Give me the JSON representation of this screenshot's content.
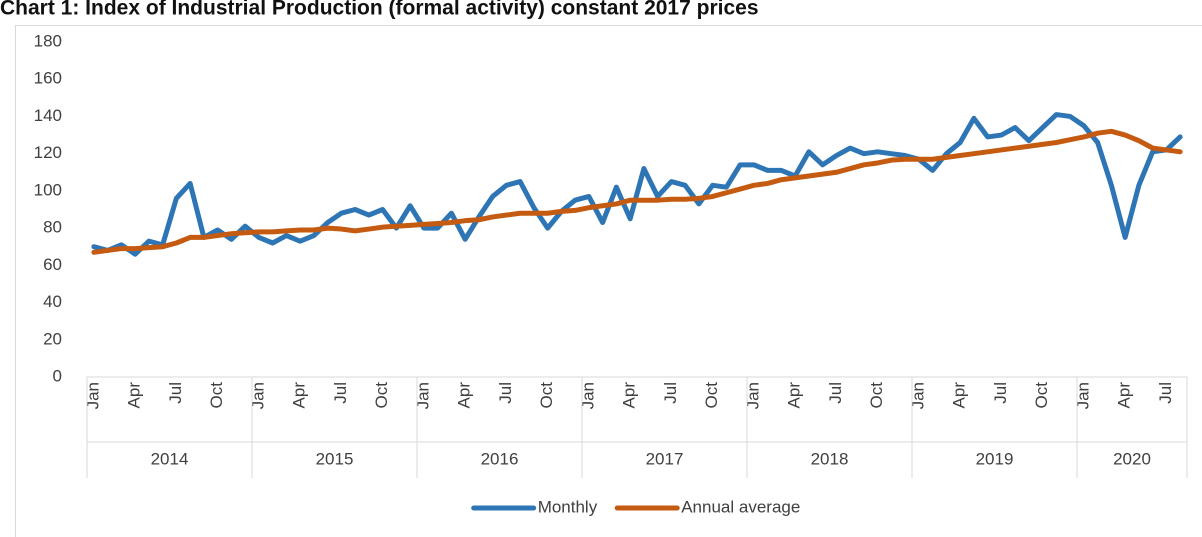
{
  "chart_data": {
    "type": "line",
    "title": "Chart 1: Index of Industrial Production (formal activity) constant 2017 prices",
    "categories": [
      "Jan",
      null,
      null,
      "Apr",
      null,
      null,
      "Jul",
      null,
      null,
      "Oct",
      null,
      null,
      "Jan",
      null,
      null,
      "Apr",
      null,
      null,
      "Jul",
      null,
      null,
      "Oct",
      null,
      null,
      "Jan",
      null,
      null,
      "Apr",
      null,
      null,
      "Jul",
      null,
      null,
      "Oct",
      null,
      null,
      "Jan",
      null,
      null,
      "Apr",
      null,
      null,
      "Jul",
      null,
      null,
      "Oct",
      null,
      null,
      "Jan",
      null,
      null,
      "Apr",
      null,
      null,
      "Jul",
      null,
      null,
      "Oct",
      null,
      null,
      "Jan",
      null,
      null,
      "Apr",
      null,
      null,
      "Jul",
      null,
      null,
      "Oct",
      null,
      null,
      "Jan",
      null,
      null,
      "Apr",
      null,
      null,
      "Jul",
      null
    ],
    "years": [
      "2014",
      null,
      null,
      null,
      null,
      null,
      null,
      null,
      null,
      null,
      null,
      null,
      "2015",
      null,
      null,
      null,
      null,
      null,
      null,
      null,
      null,
      null,
      null,
      null,
      "2016",
      null,
      null,
      null,
      null,
      null,
      null,
      null,
      null,
      null,
      null,
      null,
      "2017",
      null,
      null,
      null,
      null,
      null,
      null,
      null,
      null,
      null,
      null,
      null,
      "2018",
      null,
      null,
      null,
      null,
      null,
      null,
      null,
      null,
      null,
      null,
      null,
      "2019",
      null,
      null,
      null,
      null,
      null,
      null,
      null,
      null,
      null,
      null,
      null,
      "2020",
      null,
      null,
      null,
      null,
      null,
      null,
      null
    ],
    "series": [
      {
        "name": "Monthly",
        "color": "#2e75b6",
        "values": [
          70,
          68,
          71,
          66,
          73,
          71,
          96,
          104,
          75,
          79,
          74,
          81,
          75,
          72,
          76,
          73,
          76,
          83,
          88,
          90,
          87,
          90,
          80,
          92,
          80,
          80,
          88,
          74,
          86,
          97,
          103,
          105,
          91,
          80,
          89,
          95,
          97,
          83,
          102,
          85,
          112,
          97,
          105,
          103,
          93,
          103,
          102,
          114,
          114,
          111,
          111,
          108,
          121,
          114,
          119,
          123,
          120,
          121,
          120,
          119,
          117,
          111,
          120,
          126,
          139,
          129,
          130,
          134,
          127,
          134,
          141,
          140,
          135,
          126,
          103,
          75,
          103,
          121,
          122,
          129
        ]
      },
      {
        "name": "Annual average",
        "color": "#c55a11",
        "values": [
          67,
          68,
          69,
          69,
          69.5,
          70,
          72,
          75,
          75,
          76,
          77,
          77.5,
          78,
          78,
          78.5,
          79,
          79,
          80,
          79.5,
          78.5,
          79.5,
          80.5,
          81,
          81.5,
          82,
          82.5,
          83,
          84,
          84.5,
          86,
          87,
          88,
          88,
          88,
          89,
          89.5,
          91,
          92,
          93,
          95,
          95,
          95,
          95.5,
          95.5,
          96,
          97,
          99,
          101,
          103,
          104,
          106,
          107,
          108,
          109,
          110,
          112,
          114,
          115,
          116.5,
          117,
          117,
          117,
          118,
          119,
          120,
          121,
          122,
          123,
          124,
          125,
          126,
          127.5,
          129,
          131,
          132,
          130,
          127,
          123,
          122,
          121
        ]
      }
    ],
    "ylim": [
      0,
      180
    ],
    "yticks": [
      0,
      20,
      40,
      60,
      80,
      100,
      120,
      140,
      160,
      180
    ],
    "grid": false,
    "legend": "bottom"
  }
}
